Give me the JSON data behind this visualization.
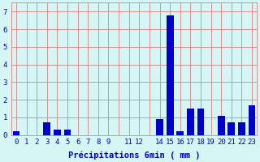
{
  "categories": [
    "0",
    "1",
    "2",
    "3",
    "4",
    "5",
    "6",
    "7",
    "8",
    "9",
    " ",
    "11",
    "12",
    " ",
    "14",
    "15",
    "16",
    "17",
    "18",
    "19",
    "20",
    "21",
    "22",
    "23"
  ],
  "values": [
    0.2,
    0.0,
    0.0,
    0.7,
    0.3,
    0.3,
    0.0,
    0.0,
    0.0,
    0.0,
    0.0,
    0.0,
    0.0,
    0.0,
    0.9,
    6.8,
    0.2,
    1.5,
    1.5,
    0.0,
    1.1,
    0.7,
    0.7,
    1.7
  ],
  "bar_color": "#0000cc",
  "background_color": "#d6f5f5",
  "grid_color": "#e08080",
  "text_color": "#0000cc",
  "xlabel": "Précipitations 6min ( mm )",
  "ylim": [
    0,
    7.5
  ],
  "yticks": [
    0,
    1,
    2,
    3,
    4,
    5,
    6,
    7
  ],
  "label_fontsize": 7.5,
  "tick_fontsize": 6.5
}
